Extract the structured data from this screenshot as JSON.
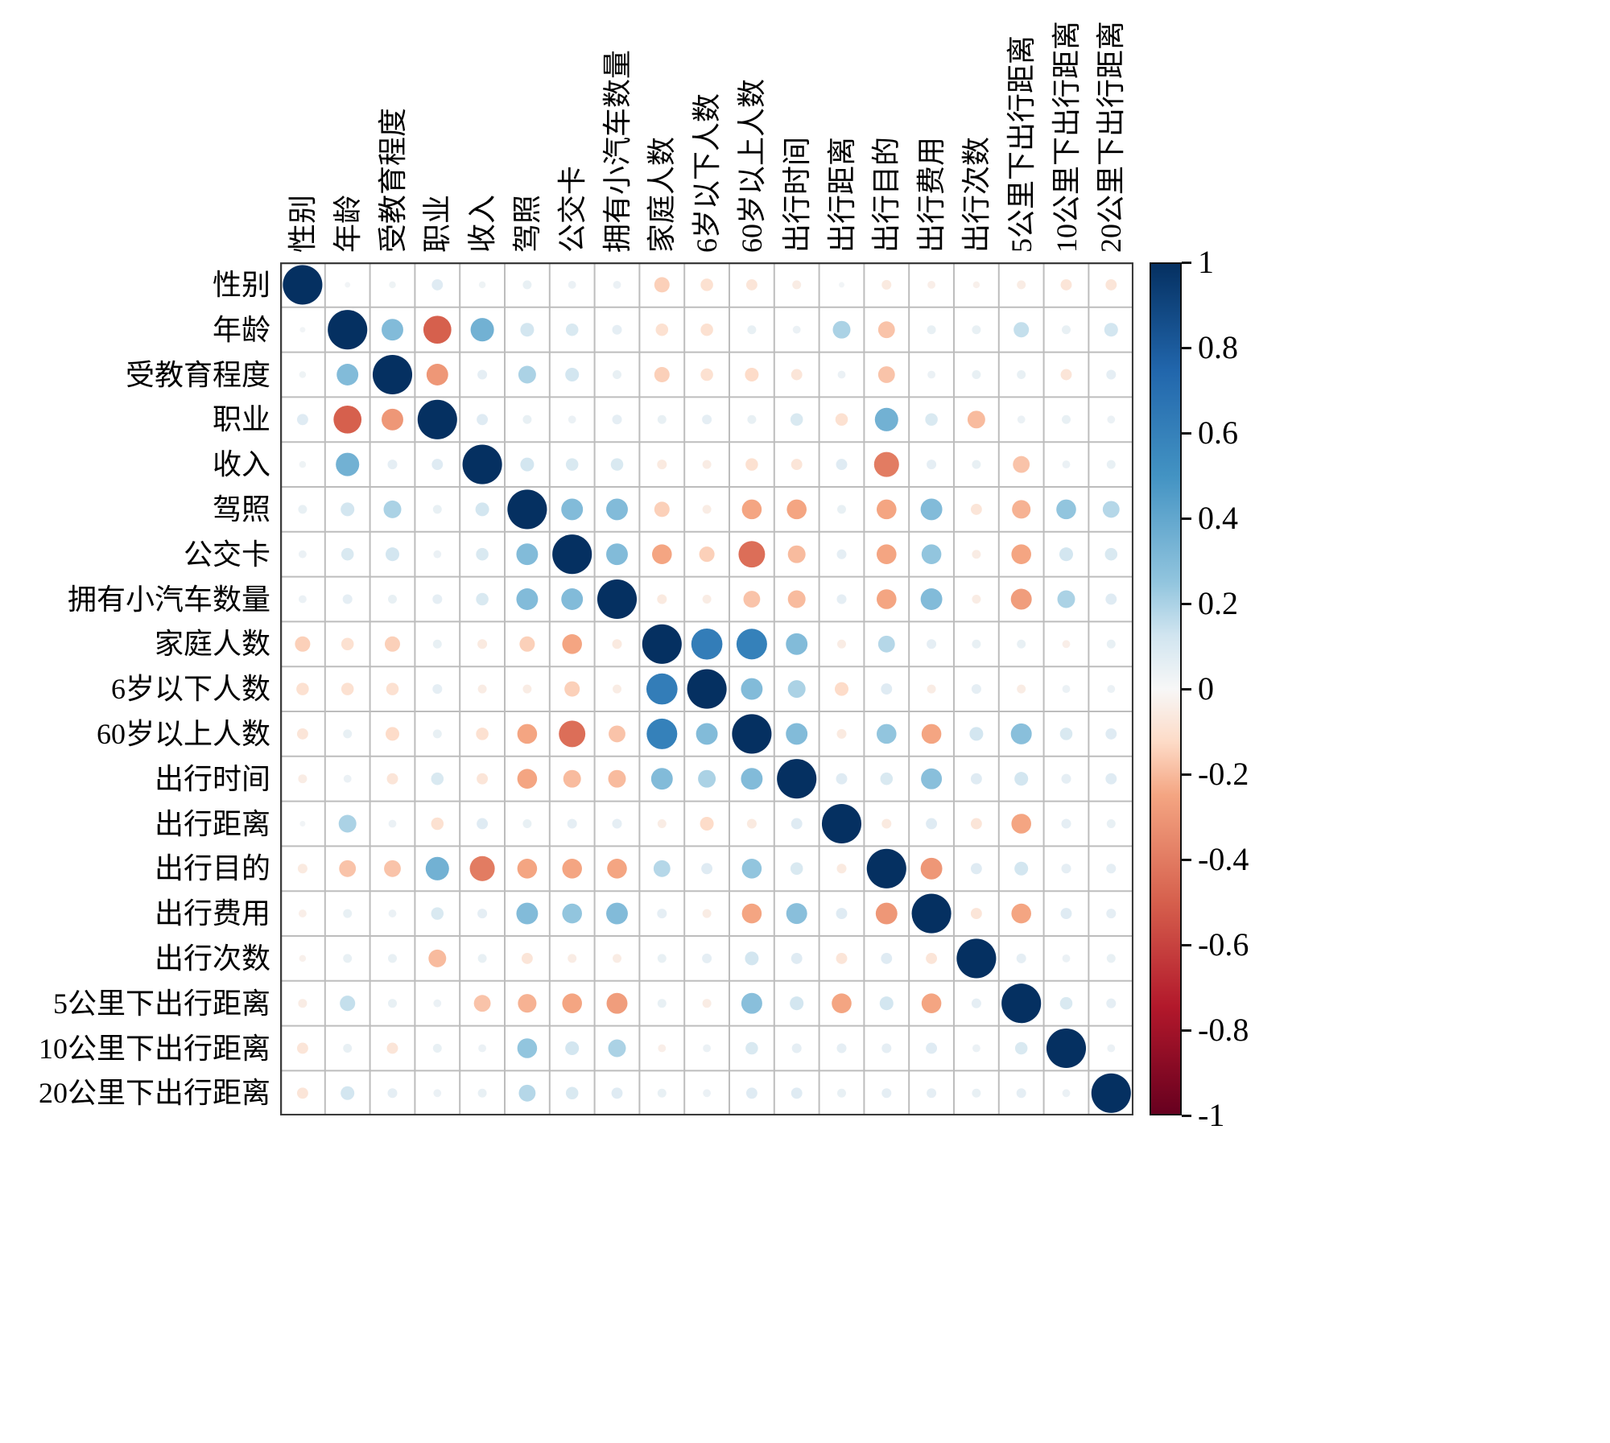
{
  "chart_data": {
    "type": "heatmap",
    "subtype": "correlation-matrix-dot-plot",
    "title": "",
    "variables": [
      "性别",
      "年龄",
      "受教育程度",
      "职业",
      "收入",
      "驾照",
      "公交卡",
      "拥有小汽车数量",
      "家庭人数",
      "6岁以下人数",
      "60岁以上人数",
      "出行时间",
      "出行距离",
      "出行目的",
      "出行费用",
      "出行次数",
      "5公里下出行距离",
      "10公里下出行距离",
      "20公里下出行距离"
    ],
    "value_range": [
      -1,
      1
    ],
    "matrix": [
      [
        1,
        0.02,
        0.03,
        0.08,
        0.03,
        0.05,
        0.04,
        0.04,
        -0.15,
        -0.1,
        -0.08,
        -0.05,
        0.02,
        -0.06,
        -0.04,
        -0.03,
        -0.05,
        -0.08,
        -0.08
      ],
      [
        0.02,
        1,
        0.3,
        -0.5,
        0.35,
        0.12,
        0.1,
        0.06,
        -0.1,
        -0.1,
        0.05,
        0.04,
        0.2,
        -0.18,
        0.05,
        0.05,
        0.15,
        0.05,
        0.12
      ],
      [
        0.03,
        0.3,
        1,
        -0.3,
        0.06,
        0.2,
        0.12,
        0.05,
        -0.15,
        -0.1,
        -0.12,
        -0.08,
        0.04,
        -0.18,
        0.04,
        0.05,
        0.05,
        -0.08,
        0.06
      ],
      [
        0.08,
        -0.5,
        -0.3,
        1,
        0.08,
        0.05,
        0.04,
        0.06,
        0.05,
        0.06,
        0.05,
        0.1,
        -0.1,
        0.35,
        0.1,
        -0.2,
        0.04,
        0.05,
        0.04
      ],
      [
        0.03,
        0.35,
        0.06,
        0.08,
        1,
        0.12,
        0.1,
        0.1,
        -0.06,
        -0.05,
        -0.1,
        -0.08,
        0.08,
        -0.4,
        0.06,
        0.05,
        -0.18,
        0.04,
        0.05
      ],
      [
        0.05,
        0.12,
        0.2,
        0.05,
        0.12,
        1,
        0.3,
        0.3,
        -0.15,
        -0.05,
        -0.25,
        -0.25,
        0.05,
        -0.25,
        0.3,
        -0.08,
        -0.22,
        0.25,
        0.18
      ],
      [
        0.04,
        0.1,
        0.12,
        0.04,
        0.1,
        0.3,
        1,
        0.3,
        -0.25,
        -0.15,
        -0.45,
        -0.2,
        0.06,
        -0.25,
        0.25,
        -0.05,
        -0.25,
        0.12,
        0.1
      ],
      [
        0.04,
        0.06,
        0.05,
        0.06,
        0.1,
        0.3,
        0.3,
        1,
        -0.06,
        -0.05,
        -0.18,
        -0.2,
        0.06,
        -0.25,
        0.3,
        -0.05,
        -0.28,
        0.2,
        0.08
      ],
      [
        -0.15,
        -0.1,
        -0.15,
        0.05,
        -0.06,
        -0.15,
        -0.25,
        -0.06,
        1,
        0.62,
        0.6,
        0.3,
        -0.05,
        0.18,
        0.06,
        0.05,
        0.05,
        -0.04,
        0.05
      ],
      [
        -0.1,
        -0.1,
        -0.1,
        0.06,
        -0.05,
        -0.05,
        -0.15,
        -0.05,
        0.62,
        1,
        0.3,
        0.2,
        -0.12,
        0.08,
        -0.05,
        0.06,
        -0.05,
        0.04,
        0.04
      ],
      [
        -0.08,
        0.05,
        -0.12,
        0.05,
        -0.1,
        -0.25,
        -0.45,
        -0.18,
        0.6,
        0.3,
        1,
        0.3,
        -0.06,
        0.25,
        -0.25,
        0.12,
        0.28,
        0.1,
        0.08
      ],
      [
        -0.05,
        0.04,
        -0.08,
        0.1,
        -0.08,
        -0.25,
        -0.2,
        -0.2,
        0.3,
        0.2,
        0.3,
        1,
        0.08,
        0.1,
        0.28,
        0.08,
        0.12,
        0.06,
        0.08
      ],
      [
        0.02,
        0.2,
        0.04,
        -0.1,
        0.08,
        0.05,
        0.06,
        0.06,
        -0.05,
        -0.12,
        -0.06,
        0.08,
        1,
        -0.06,
        0.08,
        -0.08,
        -0.25,
        0.06,
        0.05
      ],
      [
        -0.06,
        -0.18,
        -0.18,
        0.35,
        -0.4,
        -0.25,
        -0.25,
        -0.25,
        0.18,
        0.08,
        0.25,
        0.1,
        -0.06,
        1,
        -0.3,
        0.08,
        0.12,
        0.06,
        0.06
      ],
      [
        -0.04,
        0.05,
        0.04,
        0.1,
        0.06,
        0.3,
        0.25,
        0.3,
        0.06,
        -0.05,
        -0.25,
        0.28,
        0.08,
        -0.3,
        1,
        -0.08,
        -0.25,
        0.08,
        0.06
      ],
      [
        -0.03,
        0.05,
        0.05,
        -0.2,
        0.05,
        -0.08,
        -0.05,
        -0.05,
        0.05,
        0.06,
        0.12,
        0.08,
        -0.08,
        0.08,
        -0.08,
        1,
        0.06,
        0.04,
        0.05
      ],
      [
        -0.05,
        0.15,
        0.05,
        0.04,
        -0.18,
        -0.22,
        -0.25,
        -0.28,
        0.05,
        -0.05,
        0.28,
        0.12,
        -0.25,
        0.12,
        -0.25,
        0.06,
        1,
        0.1,
        0.06
      ],
      [
        -0.08,
        0.05,
        -0.08,
        0.05,
        0.04,
        0.25,
        0.12,
        0.2,
        -0.04,
        0.04,
        0.1,
        0.06,
        0.06,
        0.06,
        0.08,
        0.04,
        0.1,
        1,
        0.04
      ],
      [
        -0.08,
        0.12,
        0.06,
        0.04,
        0.05,
        0.18,
        0.1,
        0.08,
        0.05,
        0.04,
        0.08,
        0.08,
        0.05,
        0.06,
        0.06,
        0.05,
        0.06,
        0.04,
        1
      ]
    ],
    "colorbar": {
      "ticks": [
        1,
        0.8,
        0.6,
        0.4,
        0.2,
        0,
        -0.2,
        -0.4,
        -0.6,
        -0.8,
        -1
      ],
      "labels": [
        "1",
        "0.8",
        "0.6",
        "0.4",
        "0.2",
        "0",
        "-0.2",
        "-0.4",
        "-0.6",
        "-0.8",
        "-1"
      ],
      "position": "right"
    },
    "colormap": {
      "name": "RdBu",
      "stops": [
        {
          "t": 0,
          "color": "#67001f"
        },
        {
          "t": 0.125,
          "color": "#b2182b"
        },
        {
          "t": 0.25,
          "color": "#d6604d"
        },
        {
          "t": 0.375,
          "color": "#f4a582"
        },
        {
          "t": 0.4375,
          "color": "#fddbc7"
        },
        {
          "t": 0.5,
          "color": "#f7f7f7"
        },
        {
          "t": 0.5625,
          "color": "#d1e5f0"
        },
        {
          "t": 0.625,
          "color": "#92c5de"
        },
        {
          "t": 0.75,
          "color": "#4393c3"
        },
        {
          "t": 0.875,
          "color": "#2166ac"
        },
        {
          "t": 1,
          "color": "#053061"
        }
      ]
    },
    "grid": {
      "on": true,
      "line_color": "#bdbdbd",
      "border_color": "#3a3a3a",
      "background": "#ffffff"
    }
  }
}
